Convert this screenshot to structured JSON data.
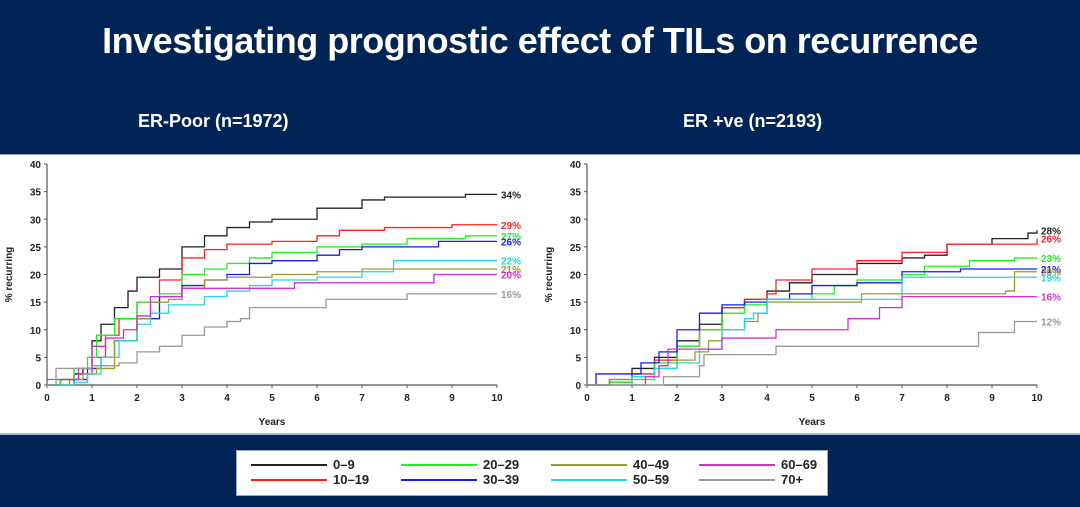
{
  "title": "Investigating prognostic effect of TILs on recurrence",
  "legend": [
    {
      "label": "0–9",
      "color": "#222222"
    },
    {
      "label": "10–19",
      "color": "#ff2020"
    },
    {
      "label": "20–29",
      "color": "#22ee22"
    },
    {
      "label": "30–39",
      "color": "#1a1aee"
    },
    {
      "label": "40–49",
      "color": "#9a9a30"
    },
    {
      "label": "50–59",
      "color": "#22d8d8"
    },
    {
      "label": "60–69",
      "color": "#d030d0"
    },
    {
      "label": "70+",
      "color": "#999999"
    }
  ],
  "chart_data": [
    {
      "type": "line",
      "step": true,
      "title": "ER-Poor (n=1972)",
      "xlabel": "Years",
      "ylabel": "% recurring",
      "xlim": [
        0,
        10
      ],
      "ylim": [
        0,
        40
      ],
      "xticks": [
        "0",
        "1",
        "2",
        "3",
        "4",
        "5",
        "6",
        "7",
        "8",
        "9",
        "10"
      ],
      "yticks": [
        "0",
        "5",
        "10",
        "15",
        "20",
        "25",
        "30",
        "35",
        "40"
      ],
      "grid": false,
      "series": [
        {
          "name": "0–9",
          "end_label": "34%",
          "x": [
            0,
            0.3,
            0.6,
            0.8,
            1,
            1.2,
            1.5,
            1.8,
            2,
            2.5,
            3,
            3.5,
            4,
            4.5,
            5,
            6,
            7,
            7.5,
            9.3,
            10
          ],
          "y": [
            0,
            1,
            2,
            3,
            8,
            11,
            14,
            17,
            19.5,
            21,
            25,
            27,
            28.5,
            29.5,
            30,
            32,
            33.5,
            34,
            34.5,
            34.5
          ]
        },
        {
          "name": "10–19",
          "end_label": "29%",
          "x": [
            0,
            0.3,
            0.7,
            1,
            1.3,
            1.6,
            2,
            2.5,
            3,
            3.5,
            4,
            5,
            6,
            6.5,
            7.5,
            9,
            10
          ],
          "y": [
            0,
            1,
            2,
            5,
            9,
            12,
            15,
            19,
            23,
            24.5,
            25.5,
            26,
            27,
            28,
            28.5,
            29,
            29
          ]
        },
        {
          "name": "20–29",
          "end_label": "27%",
          "x": [
            0,
            0.3,
            0.6,
            0.9,
            1.1,
            1.5,
            2,
            2.5,
            3,
            3.5,
            4,
            4.5,
            5,
            6,
            7,
            8,
            9.3,
            10
          ],
          "y": [
            0,
            1,
            3,
            5,
            9,
            12,
            15,
            16.5,
            20,
            21,
            22,
            23,
            24,
            25,
            25.5,
            26.5,
            27,
            27
          ]
        },
        {
          "name": "30–39",
          "end_label": "26%",
          "x": [
            0,
            0.6,
            0.9,
            1.2,
            1.5,
            2,
            2.5,
            3,
            3.5,
            4,
            4.5,
            5,
            6,
            6.5,
            7,
            8.7,
            10
          ],
          "y": [
            0,
            1,
            3,
            5,
            8,
            12,
            16,
            18,
            19,
            20,
            22,
            22.5,
            23.5,
            24.5,
            25,
            26,
            26
          ]
        },
        {
          "name": "40–49",
          "end_label": "21%",
          "x": [
            0,
            0.5,
            0.8,
            1.1,
            1.5,
            2,
            2.3,
            2.7,
            3,
            3.5,
            4,
            5,
            6,
            7,
            10
          ],
          "y": [
            0,
            1,
            2,
            3,
            8,
            12,
            15,
            15.5,
            17.5,
            19,
            19.5,
            20,
            20.5,
            21,
            21
          ]
        },
        {
          "name": "50–59",
          "end_label": "22%",
          "x": [
            0,
            0.6,
            0.9,
            1.2,
            1.6,
            2,
            2.3,
            2.7,
            3.5,
            4,
            4.5,
            5,
            6,
            7,
            7.7,
            10
          ],
          "y": [
            0,
            0.5,
            2,
            5,
            8,
            11,
            13,
            14.5,
            16,
            17,
            18,
            19,
            19.5,
            20.5,
            22.5,
            22.5
          ]
        },
        {
          "name": "60–69",
          "end_label": "20%",
          "x": [
            0,
            0.2,
            0.7,
            1,
            1.3,
            1.7,
            2,
            2.3,
            3,
            4,
            5.5,
            8.6,
            10
          ],
          "y": [
            1,
            1,
            3,
            7,
            8.5,
            10,
            12.5,
            16,
            17.5,
            17.5,
            18.5,
            20,
            20
          ]
        },
        {
          "name": "70+",
          "end_label": "16%",
          "x": [
            0,
            0.2,
            0.5,
            1,
            1.6,
            2,
            2.5,
            3,
            3.5,
            4,
            4.3,
            4.5,
            6,
            6.2,
            8,
            10
          ],
          "y": [
            0,
            3,
            3,
            3.5,
            4,
            6,
            7,
            9,
            10.5,
            11.5,
            12,
            14,
            14,
            15.5,
            16.5,
            16.5
          ]
        }
      ]
    },
    {
      "type": "line",
      "step": true,
      "title": "ER +ve (n=2193)",
      "xlabel": "Years",
      "ylabel": "% recurring",
      "xlim": [
        0,
        10
      ],
      "ylim": [
        0,
        40
      ],
      "xticks": [
        "0",
        "1",
        "2",
        "3",
        "4",
        "5",
        "6",
        "7",
        "8",
        "9",
        "10"
      ],
      "yticks": [
        "0",
        "5",
        "10",
        "15",
        "20",
        "25",
        "30",
        "35",
        "40"
      ],
      "grid": false,
      "series": [
        {
          "name": "0–9",
          "end_label": "28%",
          "x": [
            0,
            0.5,
            1,
            1.5,
            2,
            2.5,
            3,
            3.5,
            4,
            4.5,
            5,
            6,
            7,
            7.5,
            8,
            9,
            9.8,
            10
          ],
          "y": [
            0,
            1,
            3,
            5,
            8,
            11,
            14,
            15.5,
            17,
            18.5,
            20,
            22,
            23,
            23.5,
            25.5,
            26.5,
            27.5,
            28
          ]
        },
        {
          "name": "10–19",
          "end_label": "26%",
          "x": [
            0,
            0.5,
            1,
            1.5,
            2,
            2.5,
            3,
            3.5,
            4,
            4.2,
            5,
            6,
            7,
            8,
            10
          ],
          "y": [
            0,
            0.5,
            2,
            4.5,
            7,
            10,
            14,
            15.5,
            16.5,
            19,
            21,
            22.5,
            24,
            25.5,
            26.5
          ]
        },
        {
          "name": "20–29",
          "end_label": "23%",
          "x": [
            0,
            0.5,
            1,
            1.5,
            2,
            2.5,
            3,
            3.5,
            4,
            5,
            5.5,
            6,
            7,
            7.5,
            8.5,
            9.5,
            10
          ],
          "y": [
            0,
            0.5,
            1,
            4,
            7,
            10,
            13,
            14.5,
            15.5,
            16.5,
            18,
            19,
            20,
            21.5,
            22.5,
            23,
            23
          ]
        },
        {
          "name": "30–39",
          "end_label": "21%",
          "x": [
            0,
            0.2,
            0.9,
            1.2,
            1.6,
            2,
            2.5,
            3,
            3.5,
            4,
            4.5,
            5,
            6,
            7,
            8.3,
            10
          ],
          "y": [
            0,
            2,
            2,
            4,
            6,
            10,
            13,
            14.5,
            15,
            15.5,
            16.5,
            18,
            18.5,
            20.5,
            21,
            21
          ]
        },
        {
          "name": "40–49",
          "end_label": "20%",
          "x": [
            0,
            0.5,
            1,
            1.5,
            2,
            2.4,
            2.7,
            3,
            3.5,
            3.8,
            4,
            6,
            6.1,
            9.3,
            9.5,
            10
          ],
          "y": [
            0,
            1,
            1.5,
            3,
            4.5,
            6,
            8,
            10,
            11.5,
            13,
            15,
            15,
            16.5,
            17,
            20.5,
            20.5
          ]
        },
        {
          "name": "50–59",
          "end_label": "19%",
          "x": [
            0,
            0.9,
            1,
            1.5,
            2,
            2.5,
            3,
            3.5,
            3.7,
            4,
            6.9,
            7,
            10
          ],
          "y": [
            0,
            0,
            1.5,
            3,
            4,
            6.5,
            10,
            12,
            13,
            15.5,
            15.5,
            19.5,
            19.5
          ]
        },
        {
          "name": "60–69",
          "end_label": "16%",
          "x": [
            0,
            0.9,
            1.3,
            1.6,
            1.8,
            2.5,
            3,
            4.2,
            5.8,
            6.5,
            7,
            10
          ],
          "y": [
            0,
            0,
            1.5,
            3.5,
            6.5,
            6.5,
            8.5,
            10,
            12,
            14,
            16,
            16
          ]
        },
        {
          "name": "70+",
          "end_label": "12%",
          "x": [
            0,
            1.7,
            2.5,
            2.6,
            4.2,
            8.7,
            9.5,
            10
          ],
          "y": [
            0,
            1.5,
            3.5,
            5.5,
            7,
            9.5,
            11.5,
            11.5
          ]
        }
      ]
    }
  ]
}
